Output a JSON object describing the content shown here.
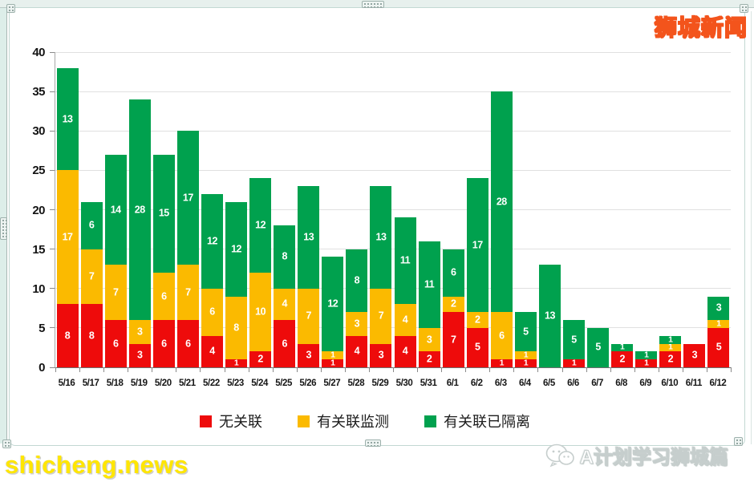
{
  "frame": {
    "brand": "狮城新闻",
    "watermark": "shicheng.news",
    "footer_badge": "A计划学习狮城篇"
  },
  "chart_data": {
    "type": "bar",
    "stacked": true,
    "title": "",
    "xlabel": "",
    "ylabel": "",
    "ylim": [
      0,
      40
    ],
    "yticks": [
      0,
      5,
      10,
      15,
      20,
      25,
      30,
      35,
      40
    ],
    "grid": "horizontal",
    "legend_position": "bottom",
    "categories": [
      "5/16",
      "5/17",
      "5/18",
      "5/19",
      "5/20",
      "5/21",
      "5/22",
      "5/23",
      "5/24",
      "5/25",
      "5/26",
      "5/27",
      "5/28",
      "5/29",
      "5/30",
      "5/31",
      "6/1",
      "6/2",
      "6/3",
      "6/4",
      "6/5",
      "6/6",
      "6/7",
      "6/8",
      "6/9",
      "6/10",
      "6/11",
      "6/12"
    ],
    "series": [
      {
        "name": "无关联",
        "color": "#ee0b0b",
        "values": [
          8,
          8,
          6,
          3,
          6,
          6,
          4,
          1,
          2,
          6,
          3,
          1,
          4,
          3,
          4,
          2,
          7,
          5,
          1,
          1,
          0,
          1,
          0,
          2,
          1,
          2,
          3,
          5
        ]
      },
      {
        "name": "有关联监测",
        "color": "#fbba00",
        "values": [
          17,
          7,
          7,
          3,
          6,
          7,
          6,
          8,
          10,
          4,
          7,
          1,
          3,
          7,
          4,
          3,
          2,
          2,
          6,
          1,
          0,
          0,
          0,
          0,
          0,
          1,
          0,
          1
        ]
      },
      {
        "name": "有关联已隔离",
        "color": "#00a14e",
        "values": [
          13,
          6,
          14,
          28,
          15,
          17,
          12,
          12,
          12,
          8,
          13,
          12,
          8,
          13,
          11,
          11,
          6,
          17,
          28,
          5,
          13,
          5,
          5,
          1,
          1,
          1,
          0,
          3
        ]
      }
    ]
  }
}
